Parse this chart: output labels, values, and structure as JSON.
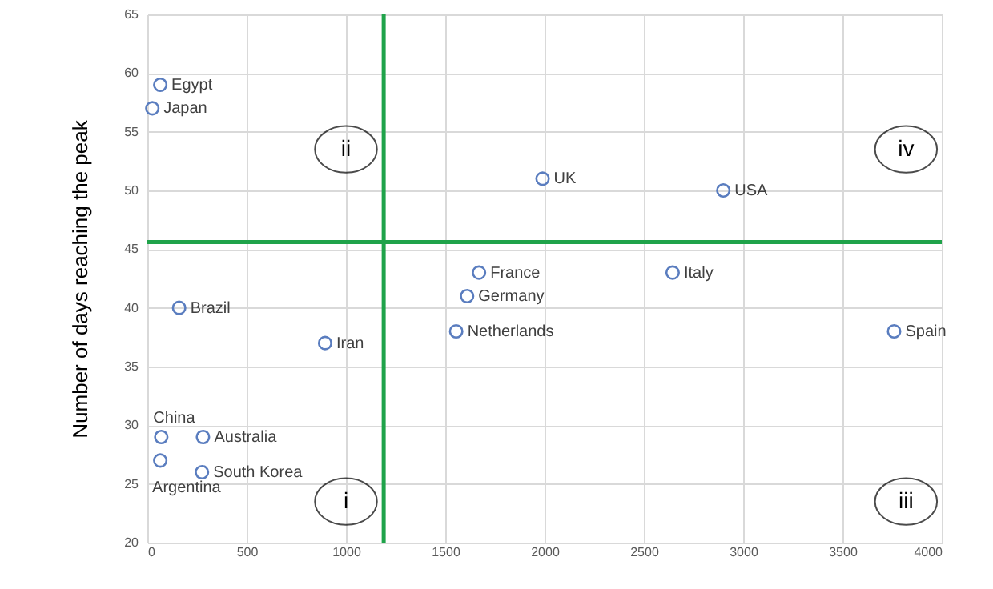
{
  "chart_data": {
    "type": "scatter",
    "ylabel": "Number of days reaching the peak",
    "x": [
      65,
      25,
      160,
      895,
      70,
      65,
      280,
      275,
      1990,
      2900,
      1670,
      1610,
      1555,
      2645,
      3760
    ],
    "series": [
      {
        "color": "#5a7dbf",
        "values": [
          59,
          57,
          40,
          37,
          29,
          27,
          29,
          26,
          51,
          50,
          43,
          41,
          38,
          43,
          38
        ]
      }
    ],
    "xlim": [
      0,
      4000
    ],
    "ylim": [
      20,
      65
    ],
    "xticks": [
      0,
      500,
      1000,
      1500,
      2000,
      2500,
      3000,
      3500,
      4000
    ],
    "yticks": [
      20,
      25,
      30,
      35,
      40,
      45,
      50,
      55,
      60,
      65
    ],
    "grid": true,
    "marker": "circle",
    "ref_lines": [
      {
        "axis": "x",
        "value": 1190,
        "color": "#1fa34a"
      },
      {
        "axis": "y",
        "value": 45.6,
        "color": "#1fa34a"
      }
    ],
    "annotations": [
      {
        "text": "Egypt",
        "x": 65,
        "y": 59
      },
      {
        "text": "Japan",
        "x": 25,
        "y": 57
      },
      {
        "text": "Brazil",
        "x": 160,
        "y": 40
      },
      {
        "text": "Iran",
        "x": 895,
        "y": 37
      },
      {
        "text": "China",
        "x": 70,
        "y": 29
      },
      {
        "text": "Argentina",
        "x": 65,
        "y": 27
      },
      {
        "text": "Australia",
        "x": 280,
        "y": 29
      },
      {
        "text": "South Korea",
        "x": 275,
        "y": 26
      },
      {
        "text": "UK",
        "x": 1990,
        "y": 51
      },
      {
        "text": "USA",
        "x": 2900,
        "y": 50
      },
      {
        "text": "France",
        "x": 1670,
        "y": 43
      },
      {
        "text": "Germany",
        "x": 1610,
        "y": 41
      },
      {
        "text": "Netherlands",
        "x": 1555,
        "y": 38
      },
      {
        "text": "Italy",
        "x": 2645,
        "y": 43
      },
      {
        "text": "Spain",
        "x": 3760,
        "y": 38
      },
      {
        "text": "i",
        "x": 1000,
        "y": 23.5
      },
      {
        "text": "ii",
        "x": 1000,
        "y": 53.5
      },
      {
        "text": "iii",
        "x": 3820,
        "y": 23.5
      },
      {
        "text": "iv",
        "x": 3820,
        "y": 53.5
      }
    ]
  }
}
